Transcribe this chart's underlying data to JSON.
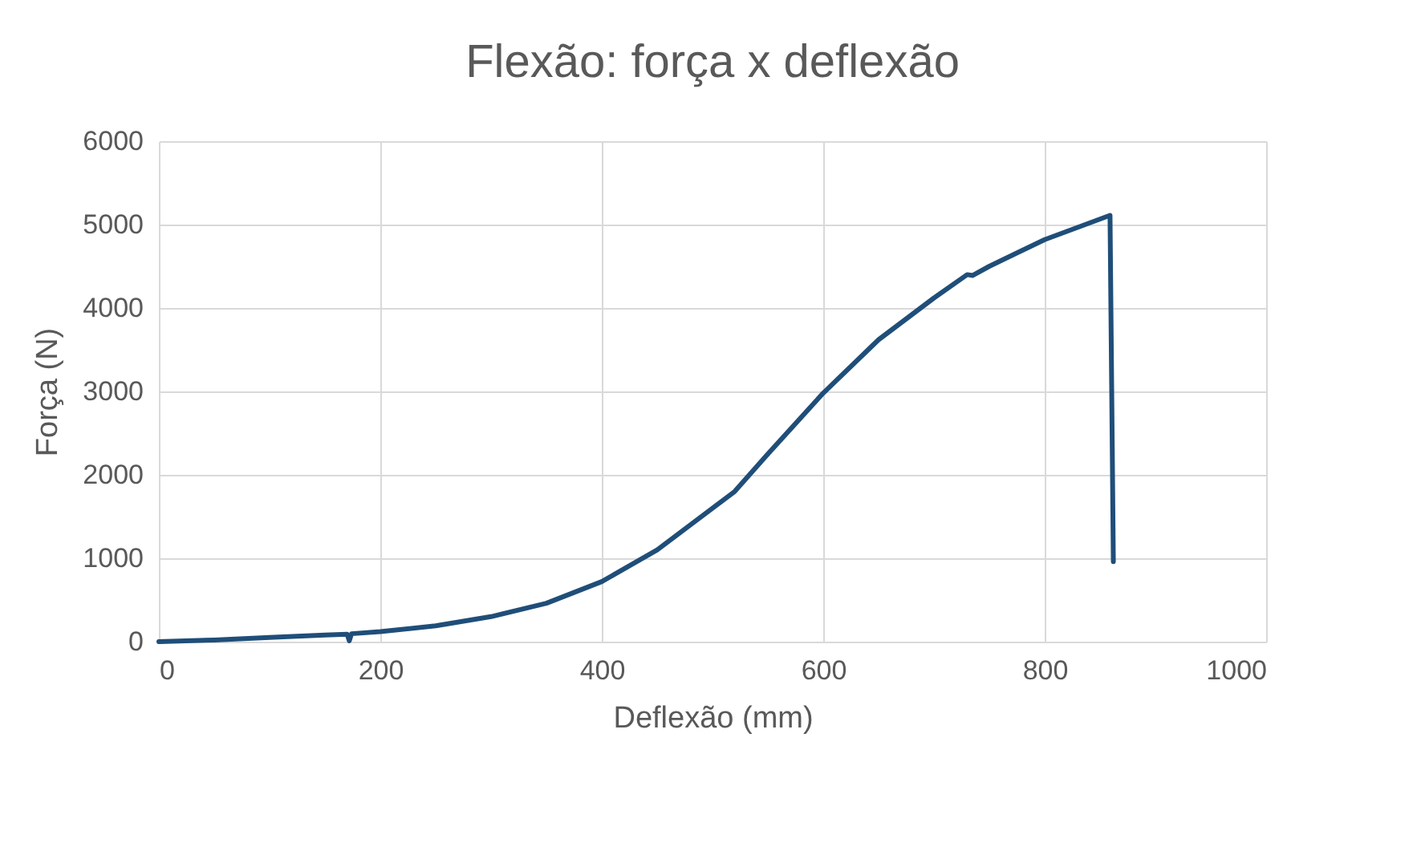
{
  "chart_data": {
    "type": "line",
    "title": "Flexão: força x deflexão",
    "xlabel": "Deflexão (mm)",
    "ylabel": "Força (N)",
    "x": [
      0,
      50,
      100,
      150,
      170,
      172,
      174,
      200,
      250,
      300,
      350,
      400,
      450,
      500,
      520,
      550,
      600,
      650,
      700,
      730,
      735,
      750,
      800,
      859,
      862
    ],
    "series": [
      {
        "color": "#1f4e79",
        "values": [
          0,
          20,
          50,
          80,
          90,
          10,
          95,
          120,
          190,
          300,
          460,
          720,
          1100,
          1600,
          1800,
          2250,
          2980,
          3620,
          4120,
          4400,
          4390,
          4500,
          4820,
          5110,
          960
        ]
      }
    ],
    "xlim": [
      0,
      1000
    ],
    "xticks": [
      0,
      200,
      400,
      600,
      800,
      1000
    ],
    "ylim": [
      0,
      6000
    ],
    "yticks": [
      0,
      1000,
      2000,
      3000,
      4000,
      5000,
      6000
    ],
    "grid": true,
    "legend": false,
    "marker": "none",
    "line_style": "solid"
  }
}
